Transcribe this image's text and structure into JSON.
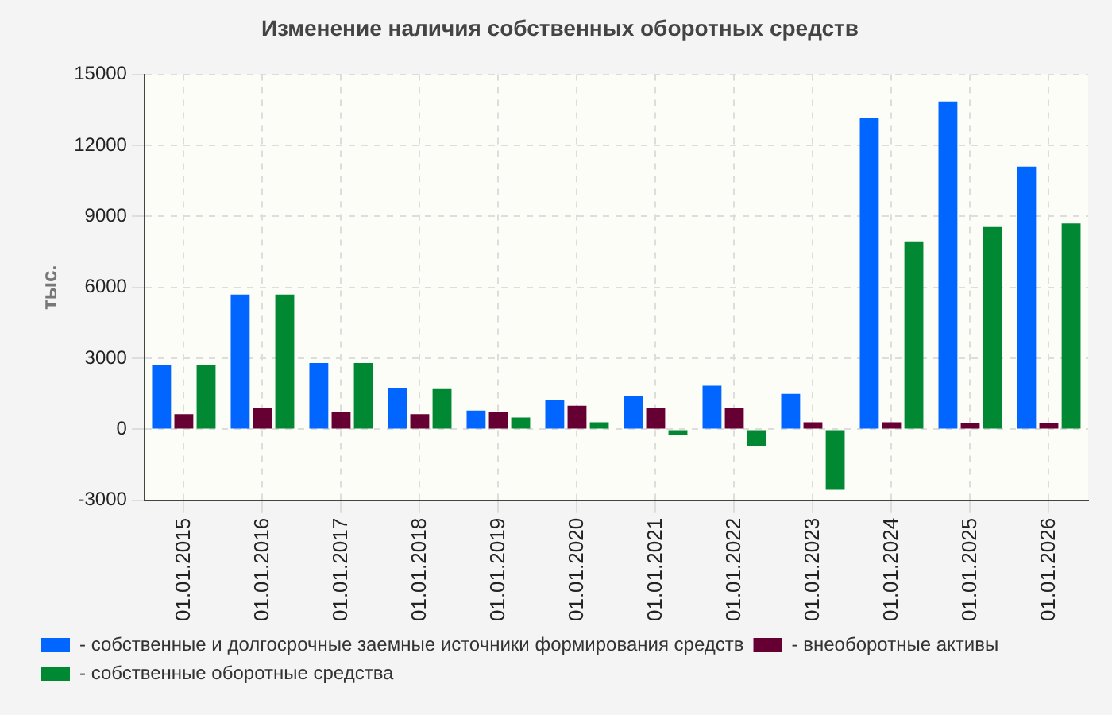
{
  "chart_data": {
    "type": "bar",
    "title": "Изменение наличия собственных оборотных средств",
    "ylabel": "тыс.",
    "categories": [
      "01.01.2015",
      "01.01.2016",
      "01.01.2017",
      "01.01.2018",
      "01.01.2019",
      "01.01.2020",
      "01.01.2021",
      "01.01.2022",
      "01.01.2023",
      "01.01.2024",
      "01.01.2025",
      "01.01.2026"
    ],
    "series": [
      {
        "name": "- собственные и долгосрочные заемные источники формирования средств",
        "color": "#0066ff",
        "values": [
          2700,
          5700,
          2800,
          1750,
          800,
          1250,
          1400,
          1850,
          1500,
          13150,
          13850,
          11100
        ]
      },
      {
        "name": "- внеоборотные активы",
        "color": "#660033",
        "values": [
          650,
          900,
          750,
          650,
          750,
          1000,
          900,
          900,
          300,
          300,
          250,
          250
        ]
      },
      {
        "name": "- собственные оборотные средства",
        "color": "#008833",
        "values": [
          2700,
          5700,
          2800,
          1700,
          500,
          300,
          -250,
          -700,
          -2550,
          7950,
          8550,
          8700
        ]
      }
    ],
    "ylim": [
      -3000,
      15000
    ],
    "yticks": [
      -3000,
      0,
      3000,
      6000,
      9000,
      12000,
      15000
    ],
    "grid": true,
    "legend": "bottom"
  }
}
